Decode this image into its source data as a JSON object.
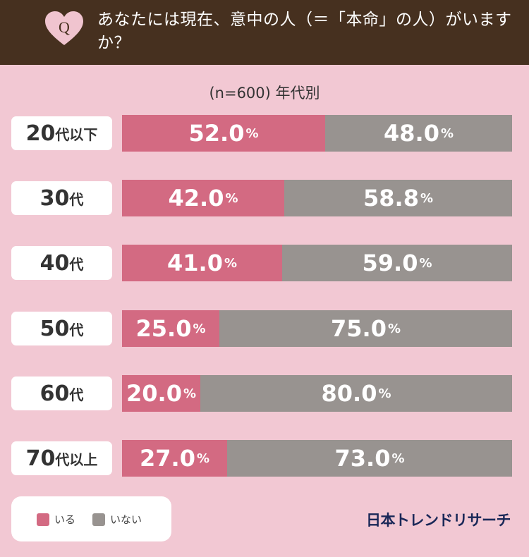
{
  "header": {
    "q_mark": "Q",
    "question": "あなたには現在、意中の人（＝「本命」の人）がいますか？"
  },
  "subtitle": "(n=600) 年代別",
  "colors": {
    "iru": "#d36a82",
    "inai": "#989390",
    "header_bg": "#46301f",
    "background": "#f2c8d3",
    "heart": "#f0c4cf"
  },
  "chart_data": {
    "type": "bar",
    "stacked": true,
    "orientation": "horizontal",
    "categories": [
      {
        "main": "20",
        "suffix": "代以下"
      },
      {
        "main": "30",
        "suffix": "代"
      },
      {
        "main": "40",
        "suffix": "代"
      },
      {
        "main": "50",
        "suffix": "代"
      },
      {
        "main": "60",
        "suffix": "代"
      },
      {
        "main": "70",
        "suffix": "代以上"
      }
    ],
    "series": [
      {
        "name": "いる",
        "values": [
          52.0,
          42.0,
          41.0,
          25.0,
          20.0,
          27.0
        ],
        "labels": [
          "52.0",
          "42.0",
          "41.0",
          "25.0",
          "20.0",
          "27.0"
        ],
        "color": "#d36a82"
      },
      {
        "name": "いない",
        "values": [
          48.0,
          58.8,
          59.0,
          75.0,
          80.0,
          73.0
        ],
        "labels": [
          "48.0",
          "58.8",
          "59.0",
          "75.0",
          "80.0",
          "73.0"
        ],
        "color": "#989390"
      }
    ],
    "unit": "%"
  },
  "legend": {
    "items": [
      {
        "label": "いる"
      },
      {
        "label": "いない"
      }
    ]
  },
  "brand": "日本トレンドリサーチ"
}
